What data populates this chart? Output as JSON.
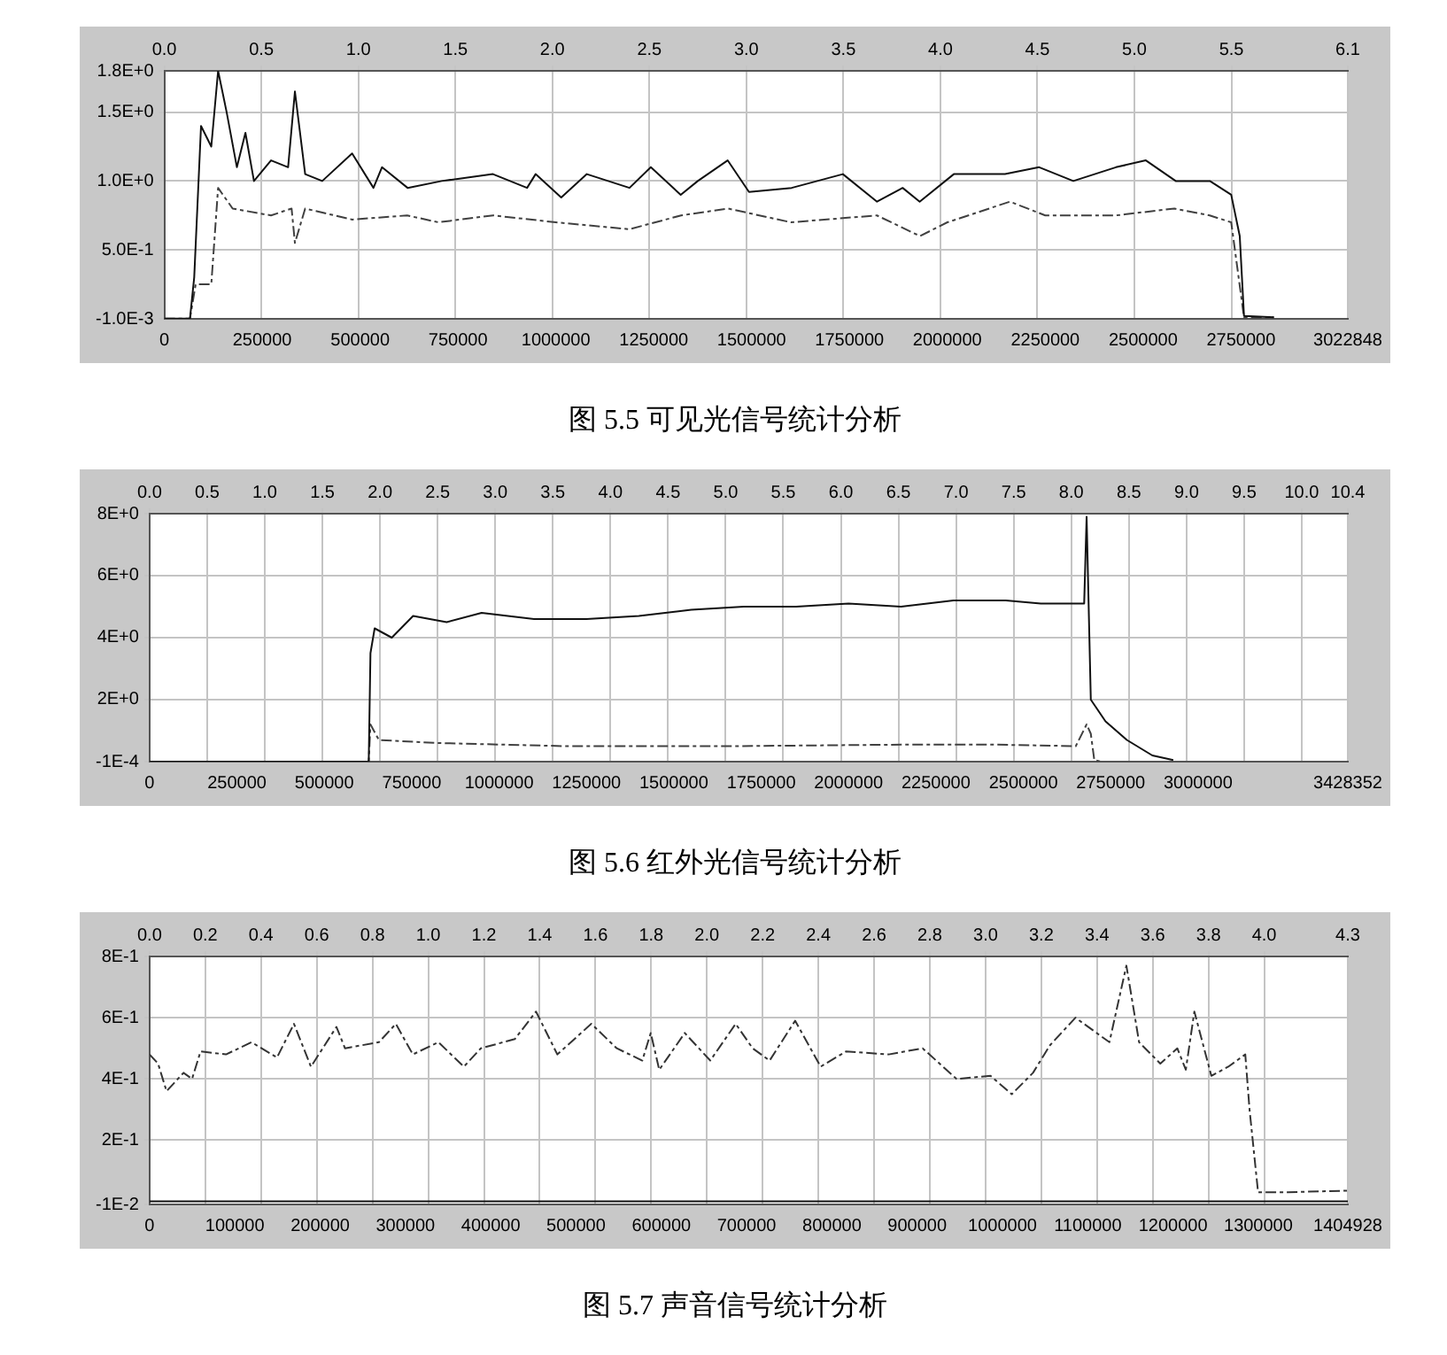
{
  "chart_data": [
    {
      "type": "line",
      "title": "图 5.5 可见光信号统计分析",
      "xlim": [
        0,
        3022848
      ],
      "xticks": [
        0,
        250000,
        500000,
        750000,
        1000000,
        1250000,
        1500000,
        1750000,
        2000000,
        2250000,
        2500000,
        2750000,
        3022848
      ],
      "x2lim": [
        0,
        6.1
      ],
      "x2ticks": [
        {
          "value": 0,
          "label": "0.0"
        },
        0.5,
        {
          "value": 1,
          "label": "1.0"
        },
        1.5,
        {
          "value": 2,
          "label": "2.0"
        },
        2.5,
        {
          "value": 3,
          "label": "3.0"
        },
        3.5,
        {
          "value": 4,
          "label": "4.0"
        },
        4.5,
        {
          "value": 5,
          "label": "5.0"
        },
        5.5,
        6.1
      ],
      "ylim": [
        -0.001,
        1.8
      ],
      "yticks": [
        {
          "value": -0.001,
          "label": "-1.0E-3"
        },
        {
          "value": 0.5,
          "label": "5.0E-1"
        },
        {
          "value": 1,
          "label": "1.0E+0"
        },
        {
          "value": 1.5,
          "label": "1.5E+0"
        },
        {
          "value": 1.8,
          "label": "1.8E+0"
        }
      ],
      "grid": true,
      "marker": "none",
      "series": [
        {
          "color": "#111111",
          "line_style": "solid",
          "x": [
            0,
            65400,
            76300,
            93700,
            119900,
            137300,
            159100,
            185300,
            207100,
            228900,
            272500,
            316100,
            333500,
            359700,
            403300,
            479600,
            534100,
            555900,
            621300,
            708500,
            839300,
            926500,
            948300,
            1013700,
            1079100,
            1188100,
            1242600,
            1318900,
            1362500,
            1438800,
            1493300,
            1602300,
            1733100,
            1820300,
            1885700,
            1929300,
            2016500,
            2147300,
            2234500,
            2321700,
            2430700,
            2507000,
            2583300,
            2670500,
            2725000,
            2746800,
            2757700,
            2834000
          ],
          "values": [
            0,
            0,
            0.3,
            1.4,
            1.25,
            1.8,
            1.5,
            1.1,
            1.35,
            1.0,
            1.15,
            1.1,
            1.65,
            1.05,
            1.0,
            1.2,
            0.95,
            1.1,
            0.95,
            1.0,
            1.05,
            0.95,
            1.05,
            0.88,
            1.05,
            0.95,
            1.1,
            0.9,
            1.0,
            1.15,
            0.92,
            0.95,
            1.05,
            0.85,
            0.95,
            0.85,
            1.05,
            1.05,
            1.1,
            1.0,
            1.1,
            1.15,
            1.0,
            1.0,
            0.9,
            0.6,
            0.02,
            0.01
          ]
        },
        {
          "color": "#404040",
          "line_style": "dashed",
          "x": [
            0,
            65400,
            80000,
            119900,
            137300,
            174400,
            272500,
            325000,
            333500,
            359700,
            480000,
            620000,
            700000,
            840000,
            1000000,
            1188100,
            1320000,
            1440000,
            1600000,
            1820000,
            1930000,
            2000000,
            2160000,
            2250000,
            2430000,
            2580000,
            2670000,
            2725000,
            2757700,
            2834000
          ],
          "values": [
            0,
            0,
            0.25,
            0.25,
            0.95,
            0.8,
            0.75,
            0.8,
            0.55,
            0.8,
            0.72,
            0.75,
            0.7,
            0.75,
            0.7,
            0.65,
            0.75,
            0.8,
            0.7,
            0.75,
            0.6,
            0.7,
            0.85,
            0.75,
            0.75,
            0.8,
            0.75,
            0.7,
            0.01,
            0.01
          ]
        }
      ]
    },
    {
      "type": "line",
      "title": "图 5.6 红外光信号统计分析",
      "xlim": [
        0,
        3428352
      ],
      "xticks": [
        0,
        250000,
        500000,
        750000,
        1000000,
        1250000,
        1500000,
        1750000,
        2000000,
        2250000,
        2500000,
        2750000,
        3000000,
        3428352
      ],
      "x2lim": [
        0,
        10.4
      ],
      "x2ticks": [
        {
          "value": 0,
          "label": "0.0"
        },
        0.5,
        {
          "value": 1,
          "label": "1.0"
        },
        1.5,
        {
          "value": 2,
          "label": "2.0"
        },
        2.5,
        {
          "value": 3,
          "label": "3.0"
        },
        3.5,
        {
          "value": 4,
          "label": "4.0"
        },
        4.5,
        {
          "value": 5,
          "label": "5.0"
        },
        5.5,
        {
          "value": 6,
          "label": "6.0"
        },
        6.5,
        {
          "value": 7,
          "label": "7.0"
        },
        7.5,
        {
          "value": 8,
          "label": "8.0"
        },
        8.5,
        {
          "value": 9,
          "label": "9.0"
        },
        9.5,
        {
          "value": 10,
          "label": "10.0"
        },
        10.4
      ],
      "ylim": [
        -0.0001,
        8
      ],
      "yticks": [
        {
          "value": -0.0001,
          "label": "-1E-4"
        },
        {
          "value": 2,
          "label": "2E+0"
        },
        {
          "value": 4,
          "label": "4E+0"
        },
        {
          "value": 6,
          "label": "6E+0"
        },
        {
          "value": 8,
          "label": "8E+0"
        }
      ],
      "grid": true,
      "marker": "none",
      "series": [
        {
          "color": "#111111",
          "line_style": "solid",
          "x": [
            0,
            627000,
            632000,
            644000,
            693000,
            754000,
            850000,
            950000,
            1100000,
            1250000,
            1400000,
            1550000,
            1700000,
            1850000,
            2000000,
            2150000,
            2300000,
            2450000,
            2550000,
            2674000,
            2681000,
            2693000,
            2735000,
            2796000,
            2869000,
            2929000
          ],
          "values": [
            0,
            0,
            3.5,
            4.3,
            4.0,
            4.7,
            4.5,
            4.8,
            4.6,
            4.6,
            4.7,
            4.9,
            5.0,
            5.0,
            5.1,
            5.0,
            5.2,
            5.2,
            5.1,
            5.1,
            7.9,
            2.0,
            1.3,
            0.7,
            0.2,
            0.05
          ]
        },
        {
          "color": "#404040",
          "line_style": "dashed",
          "x": [
            0,
            627000,
            632000,
            656000,
            826000,
            1190000,
            1677000,
            2164000,
            2410000,
            2650000,
            2681000,
            2693000,
            2703000,
            2722000
          ],
          "values": [
            0,
            0,
            1.2,
            0.7,
            0.6,
            0.5,
            0.5,
            0.55,
            0.55,
            0.5,
            1.2,
            0.9,
            0.05,
            0
          ]
        }
      ]
    },
    {
      "type": "line",
      "title": "图 5.7 声音信号统计分析",
      "xlim": [
        0,
        1404928
      ],
      "xticks": [
        0,
        100000,
        200000,
        300000,
        400000,
        500000,
        600000,
        700000,
        800000,
        900000,
        1000000,
        1100000,
        1200000,
        1300000,
        1404928
      ],
      "x2lim": [
        0,
        4.3
      ],
      "x2ticks": [
        {
          "value": 0,
          "label": "0.0"
        },
        0.2,
        0.4,
        0.6,
        0.8,
        {
          "value": 1,
          "label": "1.0"
        },
        1.2,
        1.4,
        1.6,
        1.8,
        {
          "value": 2,
          "label": "2.0"
        },
        2.2,
        2.4,
        2.6,
        2.8,
        {
          "value": 3,
          "label": "3.0"
        },
        3.2,
        3.4,
        3.6,
        3.8,
        {
          "value": 4,
          "label": "4.0"
        },
        4.3
      ],
      "ylim": [
        -0.01,
        0.8
      ],
      "yticks": [
        {
          "value": -0.01,
          "label": "-1E-2"
        },
        {
          "value": 0.2,
          "label": "2E-1"
        },
        {
          "value": 0.4,
          "label": "4E-1"
        },
        {
          "value": 0.6,
          "label": "6E-1"
        },
        {
          "value": 0.8,
          "label": "8E-1"
        }
      ],
      "grid": true,
      "marker": "none",
      "series": [
        {
          "color": "#333333",
          "line_style": "dashed",
          "x": [
            0,
            9960,
            19900,
            39800,
            49800,
            59800,
            89600,
            119500,
            149400,
            169300,
            189200,
            219100,
            229100,
            268900,
            288800,
            308700,
            338600,
            368500,
            388400,
            428200,
            453100,
            478100,
            517900,
            547800,
            577700,
            587600,
            597600,
            627500,
            657400,
            687200,
            707100,
            727000,
            756900,
            786800,
            816700,
            866500,
            906400,
            946200,
            986000,
            1010900,
            1035800,
            1055700,
            1085600,
            1125400,
            1145300,
            1160200,
            1185100,
            1205000,
            1215000,
            1225000,
            1244900,
            1264800,
            1284700,
            1289700,
            1299700,
            1334500,
            1404928
          ],
          "values": [
            0.48,
            0.45,
            0.36,
            0.42,
            0.4,
            0.49,
            0.48,
            0.52,
            0.47,
            0.58,
            0.44,
            0.57,
            0.5,
            0.52,
            0.58,
            0.48,
            0.52,
            0.44,
            0.5,
            0.53,
            0.62,
            0.48,
            0.58,
            0.5,
            0.46,
            0.55,
            0.43,
            0.55,
            0.46,
            0.58,
            0.5,
            0.46,
            0.59,
            0.44,
            0.49,
            0.48,
            0.5,
            0.4,
            0.41,
            0.35,
            0.42,
            0.51,
            0.6,
            0.52,
            0.77,
            0.52,
            0.45,
            0.5,
            0.43,
            0.62,
            0.41,
            0.44,
            0.48,
            0.3,
            0.03,
            0.03,
            0.035
          ]
        },
        {
          "color": "#111111",
          "line_style": "solid",
          "x": [
            0,
            1404928
          ],
          "values": [
            0,
            0
          ]
        }
      ]
    }
  ]
}
